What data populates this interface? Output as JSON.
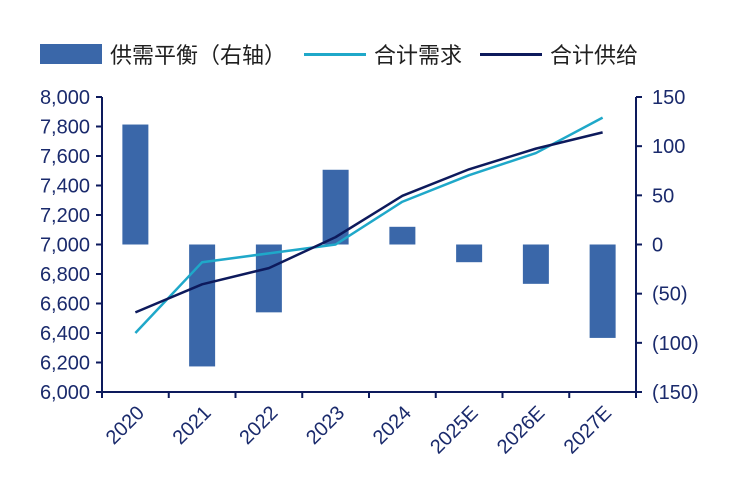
{
  "chart_data": {
    "type": "bar+line",
    "categories": [
      "2020",
      "2021",
      "2022",
      "2023",
      "2024",
      "2025E",
      "2026E",
      "2027E"
    ],
    "series": [
      {
        "name": "供需平衡（右轴）",
        "kind": "bar",
        "axis": "right",
        "color": "#3a67a9",
        "values": [
          122,
          -124,
          -69,
          76,
          18,
          -18,
          -40,
          -95
        ]
      },
      {
        "name": "合计需求",
        "kind": "line",
        "axis": "left",
        "color": "#1fa8c9",
        "values": [
          6400,
          6880,
          6940,
          7000,
          7290,
          7470,
          7620,
          7860
        ]
      },
      {
        "name": "合计供给",
        "kind": "line",
        "axis": "left",
        "color": "#0d1a5c",
        "values": [
          6540,
          6730,
          6840,
          7050,
          7330,
          7510,
          7650,
          7760
        ]
      }
    ],
    "left_axis": {
      "ylim": [
        6000,
        8000
      ],
      "ticks": [
        "6,000",
        "6,200",
        "6,400",
        "6,600",
        "6,800",
        "7,000",
        "7,200",
        "7,400",
        "7,600",
        "7,800",
        "8,000"
      ]
    },
    "right_axis": {
      "ylim": [
        -150,
        150
      ],
      "ticks": [
        "(150)",
        "(100)",
        "(50)",
        "0",
        "50",
        "100",
        "150"
      ]
    },
    "legend_position": "top",
    "grid": false,
    "axis_color": "#0d1a5c"
  }
}
